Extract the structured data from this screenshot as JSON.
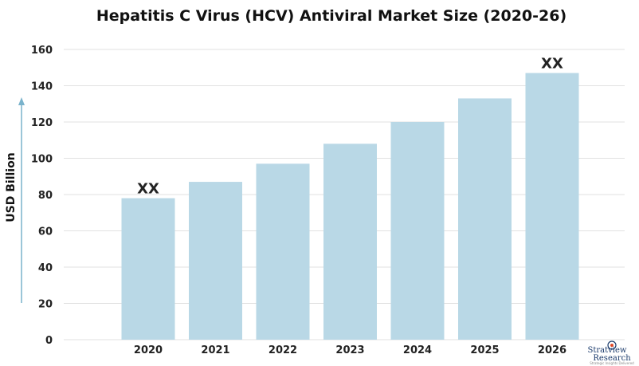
{
  "chart_data": {
    "type": "bar",
    "title": "Hepatitis C Virus (HCV) Antiviral Market Size (2020-26)",
    "ylabel": "USD Billion",
    "xlabel": "",
    "categories": [
      "2020",
      "2021",
      "2022",
      "2023",
      "2024",
      "2025",
      "2026"
    ],
    "values": [
      78,
      87,
      97,
      108,
      120,
      133,
      147
    ],
    "ylim": [
      0,
      160
    ],
    "yticks": [
      0,
      20,
      40,
      60,
      80,
      100,
      120,
      140,
      160
    ],
    "grid": true,
    "bar_color": "#b9d8e6",
    "annotations": [
      {
        "category": "2020",
        "text": "XX"
      },
      {
        "category": "2026",
        "text": "XX"
      }
    ]
  },
  "logo": {
    "line1": "Stratview",
    "line2": "Research",
    "tagline": "Strategic Insights Delivered"
  },
  "colors": {
    "axis_arrow": "#7ab3cc",
    "grid": "#e2e2e2",
    "logo_accent": "#e04a2a"
  }
}
